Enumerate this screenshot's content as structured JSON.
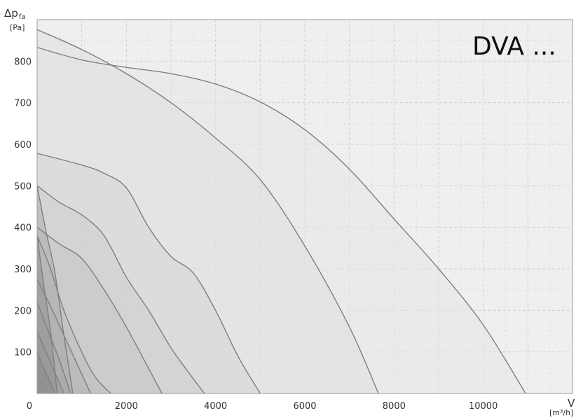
{
  "chart_data": {
    "type": "area",
    "title": "DVA ...",
    "ylabel": "Δp",
    "ylabel_sub": "fa",
    "yunit": "[Pa]",
    "xlabel": "V",
    "xunit": "[m³/h]",
    "xlim": [
      0,
      12000
    ],
    "ylim": [
      0,
      900
    ],
    "x_origin_label": "0",
    "x_ticks": [
      2000,
      4000,
      6000,
      8000,
      10000
    ],
    "y_ticks": [
      100,
      200,
      300,
      400,
      500,
      600,
      700,
      800
    ],
    "grid": true,
    "colors": {
      "plot_bg": "#efefef",
      "curve": "#7f7f7f",
      "grid": "#cfcfcf",
      "band_start": "#e6e6e6",
      "band_end": "#8c8c8c"
    },
    "series": [
      {
        "values": [
          [
            0,
            833
          ],
          [
            1000,
            803
          ],
          [
            2000,
            785
          ],
          [
            3000,
            770
          ],
          [
            4000,
            745
          ],
          [
            5000,
            702
          ],
          [
            6000,
            635
          ],
          [
            7000,
            540
          ],
          [
            8000,
            420
          ],
          [
            9000,
            300
          ],
          [
            10000,
            165
          ],
          [
            10950,
            0
          ]
        ]
      },
      {
        "values": [
          [
            0,
            876
          ],
          [
            1000,
            828
          ],
          [
            2000,
            770
          ],
          [
            3000,
            700
          ],
          [
            4000,
            615
          ],
          [
            5000,
            515
          ],
          [
            6000,
            355
          ],
          [
            7000,
            160
          ],
          [
            7650,
            0
          ]
        ]
      },
      {
        "values": [
          [
            0,
            578
          ],
          [
            1000,
            550
          ],
          [
            1500,
            530
          ],
          [
            2000,
            495
          ],
          [
            2500,
            400
          ],
          [
            3000,
            330
          ],
          [
            3500,
            290
          ],
          [
            4000,
            200
          ],
          [
            4500,
            90
          ],
          [
            5000,
            0
          ]
        ]
      },
      {
        "values": [
          [
            0,
            500
          ],
          [
            500,
            460
          ],
          [
            1000,
            430
          ],
          [
            1500,
            380
          ],
          [
            2000,
            280
          ],
          [
            2500,
            200
          ],
          [
            3000,
            110
          ],
          [
            3400,
            50
          ],
          [
            3750,
            0
          ]
        ]
      },
      {
        "values": [
          [
            0,
            400
          ],
          [
            500,
            360
          ],
          [
            1000,
            325
          ],
          [
            1500,
            250
          ],
          [
            2000,
            160
          ],
          [
            2500,
            60
          ],
          [
            2800,
            0
          ]
        ]
      },
      {
        "values": [
          [
            0,
            380
          ],
          [
            300,
            300
          ],
          [
            600,
            200
          ],
          [
            1000,
            100
          ],
          [
            1300,
            40
          ],
          [
            1650,
            0
          ]
        ]
      },
      {
        "values": [
          [
            0,
            275
          ],
          [
            300,
            210
          ],
          [
            600,
            140
          ],
          [
            900,
            70
          ],
          [
            1200,
            0
          ]
        ]
      },
      {
        "values": [
          [
            0,
            500
          ],
          [
            200,
            390
          ],
          [
            400,
            290
          ],
          [
            600,
            140
          ],
          [
            800,
            0
          ]
        ]
      },
      {
        "values": [
          [
            0,
            220
          ],
          [
            250,
            150
          ],
          [
            500,
            80
          ],
          [
            750,
            0
          ]
        ]
      },
      {
        "values": [
          [
            0,
            150
          ],
          [
            200,
            100
          ],
          [
            400,
            50
          ],
          [
            600,
            0
          ]
        ]
      },
      {
        "values": [
          [
            0,
            380
          ],
          [
            150,
            260
          ],
          [
            300,
            150
          ],
          [
            450,
            0
          ]
        ]
      },
      {
        "values": [
          [
            0,
            100
          ],
          [
            150,
            60
          ],
          [
            300,
            25
          ],
          [
            400,
            0
          ]
        ]
      }
    ]
  }
}
